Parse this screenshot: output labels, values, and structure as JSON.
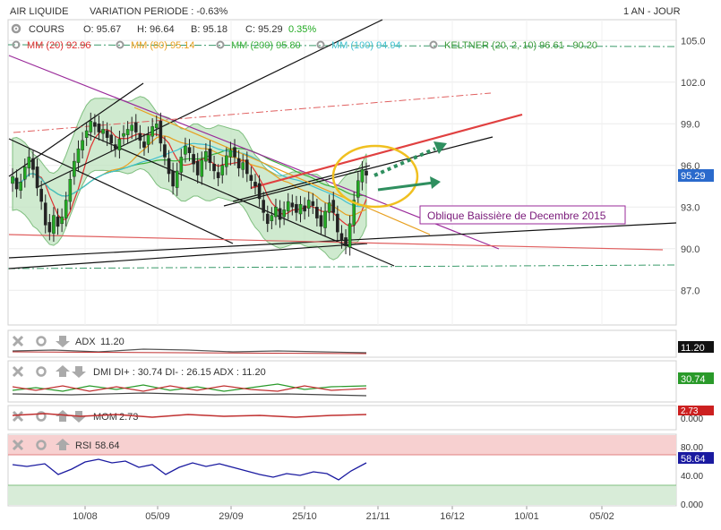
{
  "header": {
    "instrument": "AIR LIQUIDE",
    "variation": "VARIATION PERIODE : -0.63%",
    "period": "1 AN - JOUR"
  },
  "ohlc": {
    "label": "COURS",
    "open": "O: 95.67",
    "high": "H: 96.64",
    "low": "B: 95.18",
    "close": "C: 95.29",
    "change": "0.35%"
  },
  "indicators": [
    {
      "label": "MM (20)",
      "value": "92.96",
      "color": "#e03030"
    },
    {
      "label": "MM (80)",
      "value": "95.14",
      "color": "#e8a020"
    },
    {
      "label": "MM (200)",
      "value": "95.80",
      "color": "#3ab03a"
    },
    {
      "label": "MM (100)",
      "value": "94.94",
      "color": "#40c0d0"
    },
    {
      "label": "KELTNER (20, 2, 10)",
      "value": "96.61 - 90.20",
      "color": "#3a9a3a"
    }
  ],
  "annotation": "Oblique Baissière de Decembre 2015",
  "last_price_badge": "95.29",
  "panels": {
    "adx": {
      "label": "ADX",
      "value": "11.20",
      "badge": "11.20"
    },
    "dmi": {
      "label": "DMI DI+ : 30.74 DI- : 26.15 ADX : 11.20",
      "badge": "30.74"
    },
    "mom": {
      "label": "MOM",
      "value": "2.73",
      "badge": "2.73",
      "sub": "0.000"
    },
    "rsi": {
      "label": "RSI",
      "value": "58.64",
      "badge": "58.64",
      "ticks": [
        "80.00",
        "40.00",
        "0.000"
      ]
    }
  },
  "chart_data": {
    "type": "candlestick",
    "y_ticks": [
      87.0,
      90.0,
      93.0,
      96.0,
      99.0,
      102.0,
      105.0
    ],
    "ylim": [
      84.5,
      106.5
    ],
    "x_ticks": [
      "10/08",
      "05/09",
      "29/09",
      "25/10",
      "21/11",
      "16/12",
      "10/01",
      "05/02"
    ],
    "candles_close": [
      95.2,
      94.3,
      94.8,
      95.9,
      96.6,
      95.7,
      94.4,
      93.4,
      91.7,
      91.2,
      92.4,
      91.6,
      92.3,
      93.5,
      95.0,
      96.3,
      97.2,
      97.8,
      98.5,
      99.2,
      98.8,
      98.4,
      98.6,
      98.0,
      97.6,
      97.2,
      97.9,
      98.3,
      98.6,
      98.9,
      98.4,
      97.8,
      97.3,
      98.2,
      98.8,
      99.0,
      97.6,
      96.6,
      95.4,
      94.5,
      95.6,
      96.6,
      97.4,
      96.9,
      96.1,
      95.3,
      96.4,
      97.0,
      96.2,
      95.6,
      95.1,
      96.0,
      96.7,
      97.1,
      96.6,
      95.8,
      96.2,
      95.4,
      94.9,
      94.5,
      93.6,
      92.6,
      91.8,
      92.4,
      93.0,
      92.1,
      92.8,
      93.4,
      93.0,
      92.6,
      93.2,
      92.7,
      93.5,
      93.1,
      92.2,
      91.6,
      92.7,
      93.3,
      92.6,
      91.2,
      90.6,
      90.2,
      91.8,
      93.5,
      94.9,
      95.7,
      95.29
    ],
    "trendlines": [
      {
        "name": "Oblique Baissière de Decembre 2015",
        "color": "#9a2a9a"
      }
    ]
  }
}
